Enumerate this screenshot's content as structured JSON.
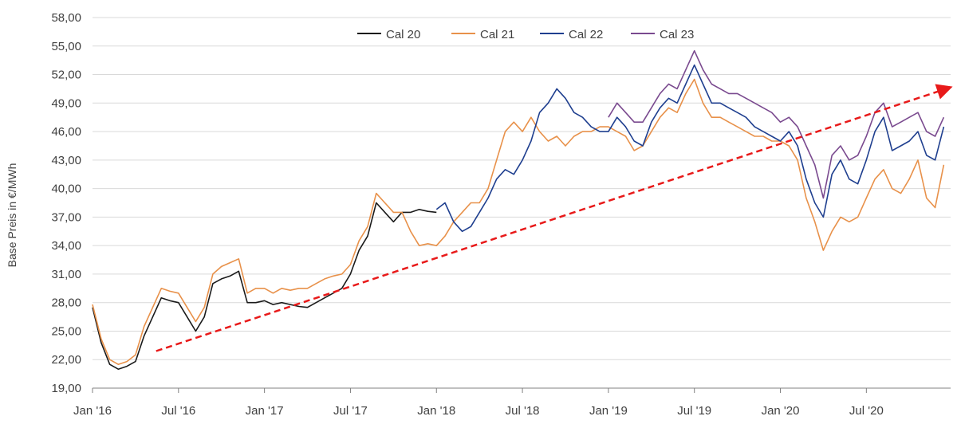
{
  "chart_data": {
    "type": "line",
    "ylabel": "Base Preis in €/MWh",
    "ylim": [
      19,
      58
    ],
    "y_ticks": [
      "19,00",
      "22,00",
      "25,00",
      "28,00",
      "31,00",
      "34,00",
      "37,00",
      "40,00",
      "43,00",
      "46,00",
      "49,00",
      "52,00",
      "55,00",
      "58,00"
    ],
    "x_ticks": [
      "Jan '16",
      "Jul '16",
      "Jan '17",
      "Jul '17",
      "Jan '18",
      "Jul '18",
      "Jan '19",
      "Jul '19",
      "Jan '20",
      "Jul '20"
    ],
    "grid": "horizontal",
    "legend_position": "top-center",
    "series": [
      {
        "name": "Cal 20",
        "color": "#1a1a1a",
        "x": [
          2016.0,
          2016.05,
          2016.1,
          2016.15,
          2016.2,
          2016.25,
          2016.3,
          2016.35,
          2016.4,
          2016.45,
          2016.5,
          2016.55,
          2016.6,
          2016.65,
          2016.7,
          2016.75,
          2016.8,
          2016.85,
          2016.9,
          2016.95,
          2017.0,
          2017.05,
          2017.1,
          2017.15,
          2017.2,
          2017.25,
          2017.3,
          2017.35,
          2017.4,
          2017.45,
          2017.5,
          2017.55,
          2017.6,
          2017.65,
          2017.7,
          2017.75,
          2017.8,
          2017.85,
          2017.9,
          2017.95,
          2018.0
        ],
        "y": [
          27.5,
          23.8,
          21.5,
          21.0,
          21.3,
          21.8,
          24.5,
          26.5,
          28.5,
          28.2,
          28.0,
          26.5,
          25.0,
          26.5,
          30.0,
          30.5,
          30.8,
          31.3,
          28.0,
          28.0,
          28.2,
          27.8,
          28.0,
          27.8,
          27.6,
          27.5,
          28.0,
          28.5,
          29.0,
          29.5,
          31.0,
          33.5,
          35.0,
          38.5,
          37.5,
          36.5,
          37.5,
          37.5,
          37.8,
          37.6,
          37.5
        ]
      },
      {
        "name": "Cal 21",
        "color": "#e8914a",
        "x": [
          2016.0,
          2016.05,
          2016.1,
          2016.15,
          2016.2,
          2016.25,
          2016.3,
          2016.35,
          2016.4,
          2016.45,
          2016.5,
          2016.55,
          2016.6,
          2016.65,
          2016.7,
          2016.75,
          2016.8,
          2016.85,
          2016.9,
          2016.95,
          2017.0,
          2017.05,
          2017.1,
          2017.15,
          2017.2,
          2017.25,
          2017.3,
          2017.35,
          2017.4,
          2017.45,
          2017.5,
          2017.55,
          2017.6,
          2017.65,
          2017.7,
          2017.75,
          2017.8,
          2017.85,
          2017.9,
          2017.95,
          2018.0,
          2018.05,
          2018.1,
          2018.15,
          2018.2,
          2018.25,
          2018.3,
          2018.35,
          2018.4,
          2018.45,
          2018.5,
          2018.55,
          2018.6,
          2018.65,
          2018.7,
          2018.75,
          2018.8,
          2018.85,
          2018.9,
          2018.95,
          2019.0,
          2019.05,
          2019.1,
          2019.15,
          2019.2,
          2019.25,
          2019.3,
          2019.35,
          2019.4,
          2019.45,
          2019.5,
          2019.55,
          2019.6,
          2019.65,
          2019.7,
          2019.75,
          2019.8,
          2019.85,
          2019.9,
          2019.95,
          2020.0,
          2020.05,
          2020.1,
          2020.15,
          2020.2,
          2020.25,
          2020.3,
          2020.35,
          2020.4,
          2020.45,
          2020.5,
          2020.55,
          2020.6,
          2020.65,
          2020.7,
          2020.75,
          2020.8,
          2020.85,
          2020.9,
          2020.95
        ],
        "y": [
          27.8,
          24.2,
          22.0,
          21.5,
          21.8,
          22.5,
          25.5,
          27.5,
          29.5,
          29.2,
          29.0,
          27.5,
          26.0,
          27.5,
          31.0,
          31.8,
          32.2,
          32.6,
          29.0,
          29.5,
          29.5,
          29.0,
          29.5,
          29.3,
          29.5,
          29.5,
          30.0,
          30.5,
          30.8,
          31.0,
          32.0,
          34.5,
          36.0,
          39.5,
          38.5,
          37.5,
          37.5,
          35.5,
          34.0,
          34.2,
          34.0,
          35.0,
          36.5,
          37.5,
          38.5,
          38.5,
          40.0,
          43.0,
          46.0,
          47.0,
          46.0,
          47.5,
          46.0,
          45.0,
          45.5,
          44.5,
          45.5,
          46.0,
          46.0,
          46.5,
          46.5,
          46.0,
          45.5,
          44.0,
          44.5,
          46.0,
          47.5,
          48.5,
          48.0,
          50.0,
          51.5,
          49.0,
          47.5,
          47.5,
          47.0,
          46.5,
          46.0,
          45.5,
          45.5,
          45.0,
          45.0,
          44.5,
          43.0,
          39.0,
          36.5,
          33.5,
          35.5,
          37.0,
          36.5,
          37.0,
          39.0,
          41.0,
          42.0,
          40.0,
          39.5,
          41.0,
          43.0,
          39.0,
          38.0,
          42.5
        ]
      },
      {
        "name": "Cal 22",
        "color": "#1f3f8f",
        "x": [
          2018.0,
          2018.05,
          2018.1,
          2018.15,
          2018.2,
          2018.25,
          2018.3,
          2018.35,
          2018.4,
          2018.45,
          2018.5,
          2018.55,
          2018.6,
          2018.65,
          2018.7,
          2018.75,
          2018.8,
          2018.85,
          2018.9,
          2018.95,
          2019.0,
          2019.05,
          2019.1,
          2019.15,
          2019.2,
          2019.25,
          2019.3,
          2019.35,
          2019.4,
          2019.45,
          2019.5,
          2019.55,
          2019.6,
          2019.65,
          2019.7,
          2019.75,
          2019.8,
          2019.85,
          2019.9,
          2019.95,
          2020.0,
          2020.05,
          2020.1,
          2020.15,
          2020.2,
          2020.25,
          2020.3,
          2020.35,
          2020.4,
          2020.45,
          2020.5,
          2020.55,
          2020.6,
          2020.65,
          2020.7,
          2020.75,
          2020.8,
          2020.85,
          2020.9,
          2020.95
        ],
        "y": [
          37.8,
          38.5,
          36.5,
          35.5,
          36.0,
          37.5,
          39.0,
          41.0,
          42.0,
          41.5,
          43.0,
          45.0,
          48.0,
          49.0,
          50.5,
          49.5,
          48.0,
          47.5,
          46.5,
          46.0,
          46.0,
          47.5,
          46.5,
          45.0,
          44.5,
          47.0,
          48.5,
          49.5,
          49.0,
          51.0,
          53.0,
          51.0,
          49.0,
          49.0,
          48.5,
          48.0,
          47.5,
          46.5,
          46.0,
          45.5,
          45.0,
          46.0,
          44.5,
          41.0,
          38.5,
          37.0,
          41.5,
          43.0,
          41.0,
          40.5,
          43.0,
          46.0,
          47.5,
          44.0,
          44.5,
          45.0,
          46.0,
          43.5,
          43.0,
          46.5
        ]
      },
      {
        "name": "Cal 23",
        "color": "#7a4a8f",
        "x": [
          2019.0,
          2019.05,
          2019.1,
          2019.15,
          2019.2,
          2019.25,
          2019.3,
          2019.35,
          2019.4,
          2019.45,
          2019.5,
          2019.55,
          2019.6,
          2019.65,
          2019.7,
          2019.75,
          2019.8,
          2019.85,
          2019.9,
          2019.95,
          2020.0,
          2020.05,
          2020.1,
          2020.15,
          2020.2,
          2020.25,
          2020.3,
          2020.35,
          2020.4,
          2020.45,
          2020.5,
          2020.55,
          2020.6,
          2020.65,
          2020.7,
          2020.75,
          2020.8,
          2020.85,
          2020.9,
          2020.95
        ],
        "y": [
          47.5,
          49.0,
          48.0,
          47.0,
          47.0,
          48.5,
          50.0,
          51.0,
          50.5,
          52.5,
          54.5,
          52.5,
          51.0,
          50.5,
          50.0,
          50.0,
          49.5,
          49.0,
          48.5,
          48.0,
          47.0,
          47.5,
          46.5,
          44.5,
          42.5,
          39.0,
          43.5,
          44.5,
          43.0,
          43.5,
          45.5,
          48.0,
          49.0,
          46.5,
          47.0,
          47.5,
          48.0,
          46.0,
          45.5,
          47.5
        ]
      }
    ],
    "annotations": [
      {
        "type": "trend-arrow",
        "style": "dashed",
        "color": "#e81a1a",
        "from": [
          2016.37,
          22.9
        ],
        "to": [
          2020.98,
          50.6
        ]
      }
    ]
  }
}
